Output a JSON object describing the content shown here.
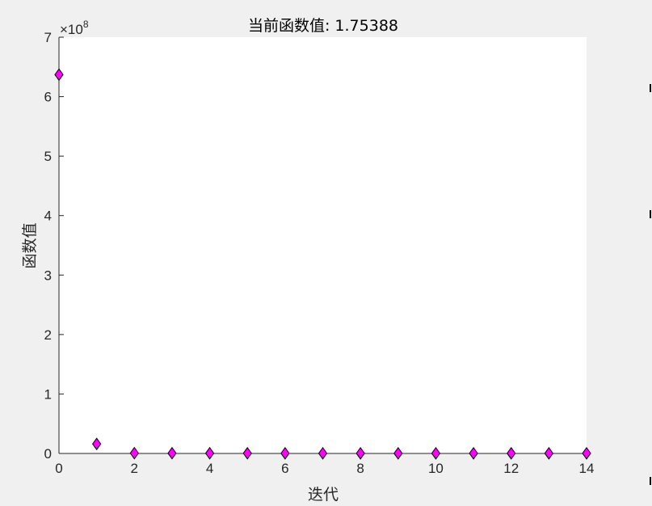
{
  "chart_data": {
    "type": "scatter",
    "title": "当前函数值: 1.75388",
    "xlabel": "迭代",
    "ylabel": "函数值",
    "xlim": [
      0,
      14
    ],
    "ylim": [
      0,
      7
    ],
    "y_exponent_label": "×10",
    "y_exponent_power": "8",
    "x_ticks": [
      "0",
      "2",
      "4",
      "6",
      "8",
      "10",
      "12",
      "14"
    ],
    "y_ticks": [
      "0",
      "1",
      "2",
      "3",
      "4",
      "5",
      "6",
      "7"
    ],
    "marker": "diamond",
    "marker_color": "#ff00ff",
    "marker_edge": "#000000",
    "grid": false,
    "series": [
      {
        "x": [
          0,
          1,
          2,
          3,
          4,
          5,
          6,
          7,
          8,
          9,
          10,
          11,
          12,
          13,
          14
        ],
        "y": [
          6.37,
          0.16,
          0.005,
          0.004,
          0.003,
          0.003,
          0.002,
          0.002,
          0.002,
          0.002,
          0.002,
          0.002,
          0.002,
          0.002,
          0.002
        ]
      }
    ]
  }
}
